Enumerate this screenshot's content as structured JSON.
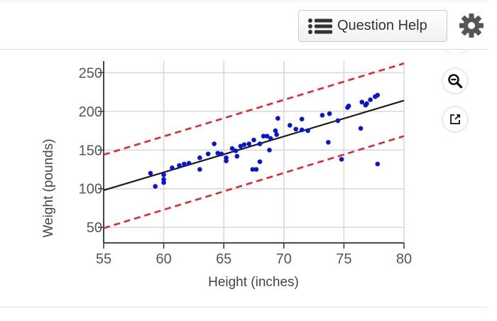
{
  "toolbar": {
    "question_help_label": "Question Help",
    "question_help_icon": "list-icon",
    "settings_icon": "gear-icon"
  },
  "side_tools": {
    "zoom_icon": "zoom-out-icon",
    "popout_icon": "external-link-icon"
  },
  "colors": {
    "points": "#0a14d8",
    "fit_line": "#1a1a1a",
    "bound_lines": "#e8262a",
    "grid": "#d7d7d7"
  },
  "chart_data": {
    "type": "scatter",
    "xlabel": "Height (inches)",
    "ylabel": "Weight (pounds)",
    "xlim": [
      55,
      80
    ],
    "ylim": [
      30,
      265
    ],
    "xticks": [
      55,
      60,
      65,
      70,
      75,
      80
    ],
    "yticks": [
      50,
      100,
      150,
      200,
      250
    ],
    "grid": true,
    "points": [
      [
        58.9,
        120
      ],
      [
        59.3,
        103
      ],
      [
        60,
        118
      ],
      [
        60,
        112
      ],
      [
        60,
        108
      ],
      [
        60.7,
        127
      ],
      [
        61.3,
        130
      ],
      [
        61.7,
        132
      ],
      [
        62.1,
        133
      ],
      [
        63,
        140
      ],
      [
        63,
        125
      ],
      [
        63.7,
        145
      ],
      [
        64.2,
        158
      ],
      [
        64.5,
        146
      ],
      [
        64.8,
        145
      ],
      [
        65.2,
        140
      ],
      [
        65.2,
        136
      ],
      [
        65.7,
        152
      ],
      [
        66,
        149
      ],
      [
        66.1,
        142
      ],
      [
        66.4,
        155
      ],
      [
        66.7,
        157
      ],
      [
        67.1,
        158
      ],
      [
        67.4,
        125
      ],
      [
        67.5,
        163
      ],
      [
        67.7,
        125
      ],
      [
        68,
        158
      ],
      [
        68,
        135
      ],
      [
        68.3,
        168
      ],
      [
        68.6,
        168
      ],
      [
        68.8,
        150
      ],
      [
        68.9,
        165
      ],
      [
        69.3,
        175
      ],
      [
        69.4,
        170
      ],
      [
        69.5,
        191
      ],
      [
        70.5,
        182
      ],
      [
        71,
        177
      ],
      [
        71.5,
        190
      ],
      [
        71.5,
        176
      ],
      [
        72,
        175
      ],
      [
        73.2,
        195
      ],
      [
        73.7,
        160
      ],
      [
        73.8,
        197
      ],
      [
        74.5,
        188
      ],
      [
        74.8,
        138
      ],
      [
        75.3,
        205
      ],
      [
        75.4,
        207
      ],
      [
        76.4,
        178
      ],
      [
        76.5,
        212
      ],
      [
        76.8,
        208
      ],
      [
        76.9,
        210
      ],
      [
        77.2,
        215
      ],
      [
        77.6,
        219
      ],
      [
        77.8,
        221
      ],
      [
        77.8,
        132
      ]
    ],
    "fit_line": [
      [
        55,
        98
      ],
      [
        80,
        214
      ]
    ],
    "upper_bound": [
      [
        55,
        144
      ],
      [
        80,
        262
      ]
    ],
    "lower_bound": [
      [
        55,
        49
      ],
      [
        80,
        168
      ]
    ]
  }
}
